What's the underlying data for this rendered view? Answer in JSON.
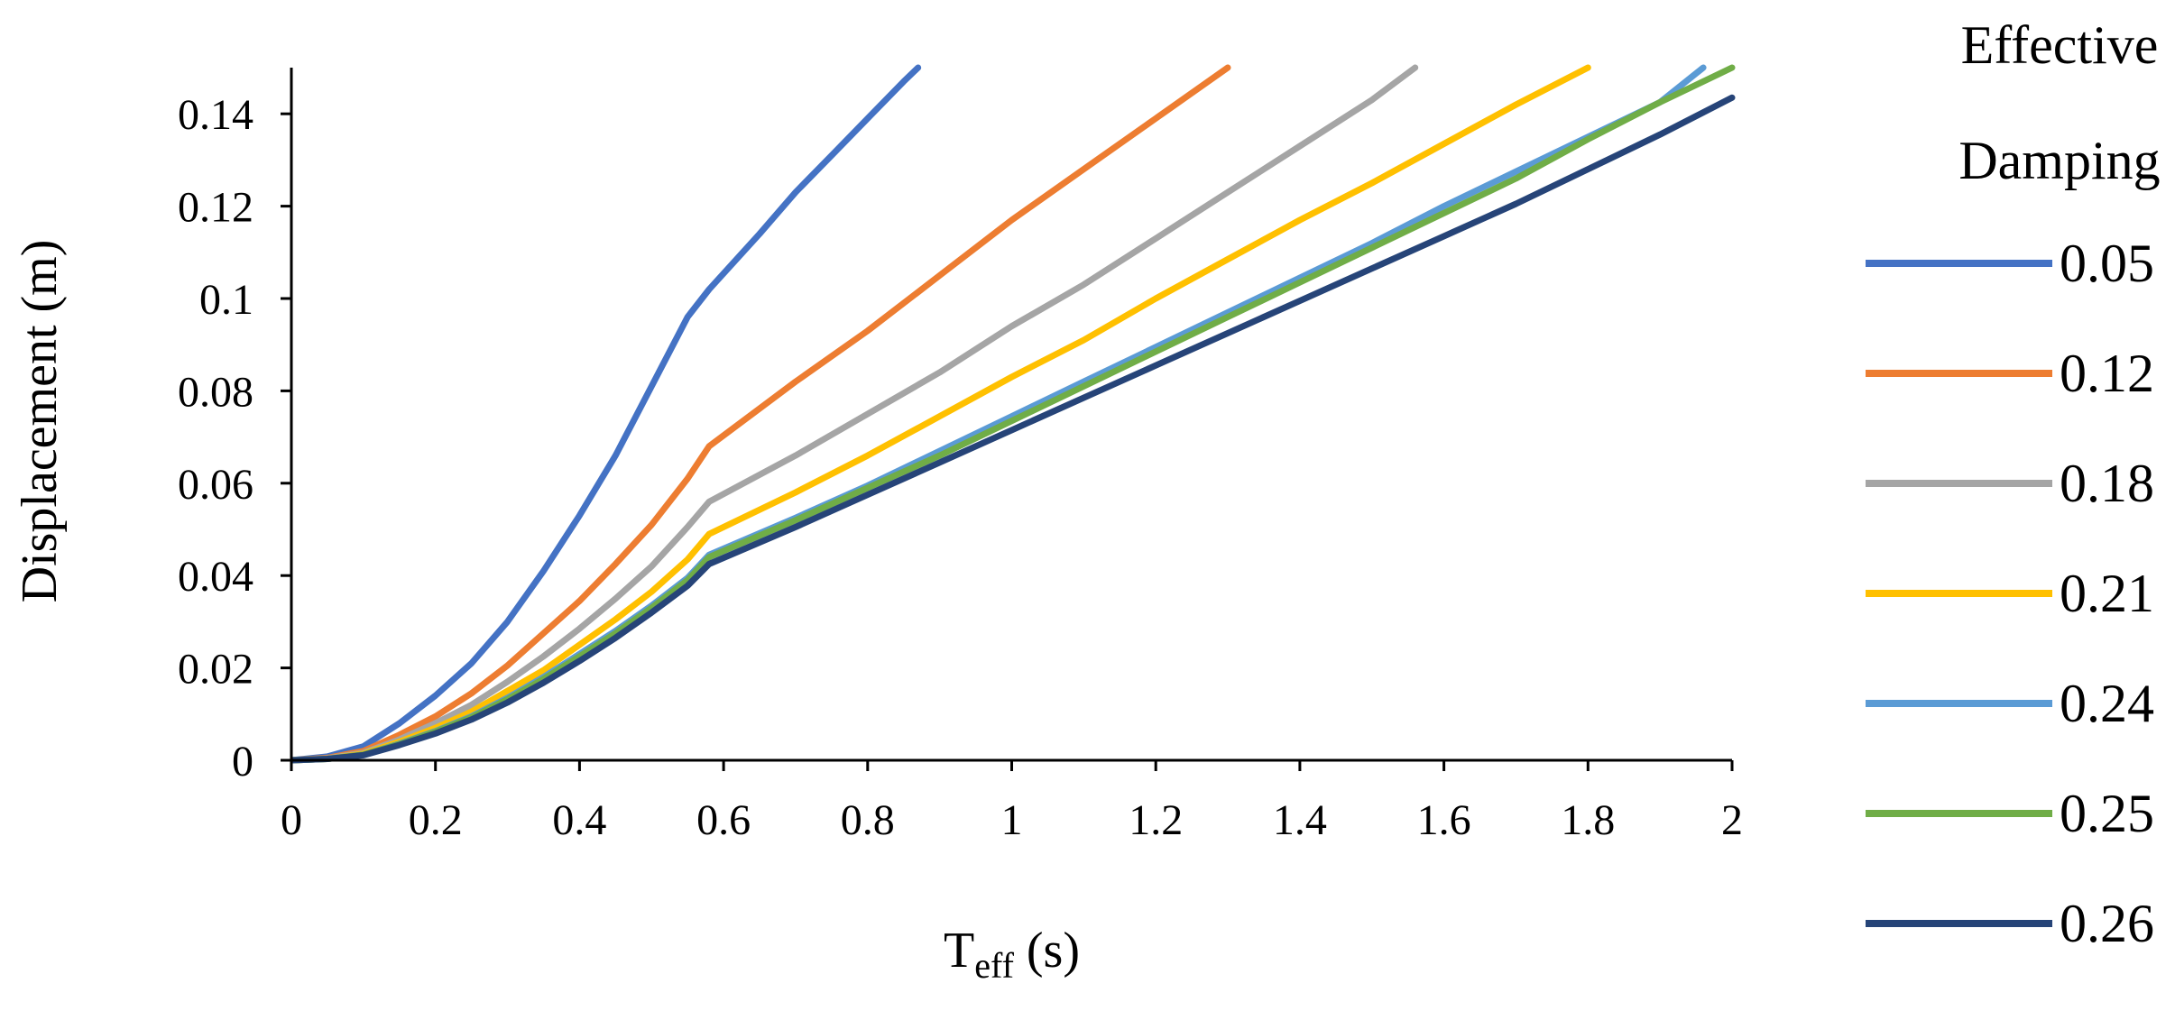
{
  "chart_data": {
    "type": "line",
    "title": "",
    "xlabel_main": "T",
    "xlabel_sub": "eff",
    "xlabel_unit": " (s)",
    "ylabel": "Displacement (m)",
    "xlim": [
      0,
      2
    ],
    "ylim": [
      0,
      0.15
    ],
    "grid": false,
    "legend_position": "right",
    "legend_title": [
      "Effective",
      "Damping"
    ],
    "x_ticks": [
      0,
      0.2,
      0.4,
      0.6,
      0.8,
      1,
      1.2,
      1.4,
      1.6,
      1.8,
      2
    ],
    "x_tick_labels": [
      "0",
      "0.2",
      "0.4",
      "0.6",
      "0.8",
      "1",
      "1.2",
      "1.4",
      "1.6",
      "1.8",
      "2"
    ],
    "y_ticks": [
      0,
      0.02,
      0.04,
      0.06,
      0.08,
      0.1,
      0.12,
      0.14
    ],
    "y_tick_labels": [
      "0",
      "0.02",
      "0.04",
      "0.06",
      "0.08",
      "0.1",
      "0.12",
      "0.14"
    ],
    "series": [
      {
        "name": "0.05",
        "color": "#4472C4",
        "x": [
          0,
          0.05,
          0.1,
          0.15,
          0.2,
          0.25,
          0.3,
          0.35,
          0.4,
          0.45,
          0.5,
          0.55,
          0.58,
          0.65,
          0.7,
          0.75,
          0.8,
          0.85,
          0.87
        ],
        "y": [
          0,
          0.0008,
          0.003,
          0.008,
          0.014,
          0.021,
          0.03,
          0.041,
          0.053,
          0.066,
          0.081,
          0.096,
          0.102,
          0.114,
          0.123,
          0.131,
          0.139,
          0.147,
          0.15
        ]
      },
      {
        "name": "0.12",
        "color": "#ED7D31",
        "x": [
          0,
          0.05,
          0.1,
          0.15,
          0.2,
          0.25,
          0.3,
          0.35,
          0.4,
          0.45,
          0.5,
          0.55,
          0.58,
          0.7,
          0.8,
          0.9,
          1.0,
          1.1,
          1.2,
          1.3
        ],
        "y": [
          0,
          0.0005,
          0.002,
          0.0055,
          0.0095,
          0.0145,
          0.0205,
          0.0275,
          0.0345,
          0.0425,
          0.051,
          0.061,
          0.068,
          0.082,
          0.093,
          0.105,
          0.117,
          0.128,
          0.139,
          0.15
        ]
      },
      {
        "name": "0.18",
        "color": "#A5A5A5",
        "x": [
          0,
          0.05,
          0.1,
          0.15,
          0.2,
          0.25,
          0.3,
          0.35,
          0.4,
          0.45,
          0.5,
          0.55,
          0.58,
          0.7,
          0.8,
          0.9,
          1.0,
          1.1,
          1.2,
          1.3,
          1.4,
          1.5,
          1.56
        ],
        "y": [
          0,
          0.0004,
          0.0016,
          0.0045,
          0.008,
          0.012,
          0.017,
          0.0225,
          0.0285,
          0.035,
          0.042,
          0.0505,
          0.056,
          0.066,
          0.075,
          0.084,
          0.094,
          0.103,
          0.113,
          0.123,
          0.133,
          0.143,
          0.15
        ]
      },
      {
        "name": "0.21",
        "color": "#FFC000",
        "x": [
          0,
          0.05,
          0.1,
          0.15,
          0.2,
          0.25,
          0.3,
          0.35,
          0.4,
          0.45,
          0.5,
          0.55,
          0.58,
          0.7,
          0.8,
          0.9,
          1.0,
          1.1,
          1.2,
          1.3,
          1.4,
          1.5,
          1.6,
          1.7,
          1.8
        ],
        "y": [
          0,
          0.0003,
          0.0014,
          0.004,
          0.007,
          0.0105,
          0.015,
          0.0195,
          0.025,
          0.0305,
          0.0365,
          0.0435,
          0.049,
          0.058,
          0.066,
          0.0745,
          0.083,
          0.091,
          0.1,
          0.1085,
          0.117,
          0.125,
          0.1335,
          0.142,
          0.15
        ]
      },
      {
        "name": "0.24",
        "color": "#5B9BD5",
        "x": [
          0,
          0.05,
          0.1,
          0.15,
          0.2,
          0.25,
          0.3,
          0.35,
          0.4,
          0.45,
          0.5,
          0.55,
          0.58,
          0.7,
          0.8,
          0.9,
          1.0,
          1.1,
          1.2,
          1.3,
          1.4,
          1.5,
          1.6,
          1.7,
          1.8,
          1.9,
          1.96
        ],
        "y": [
          0,
          0.0003,
          0.0012,
          0.0036,
          0.0063,
          0.0095,
          0.0135,
          0.018,
          0.023,
          0.028,
          0.0335,
          0.0395,
          0.0445,
          0.0525,
          0.0595,
          0.067,
          0.0745,
          0.082,
          0.0895,
          0.097,
          0.1045,
          0.112,
          0.12,
          0.1275,
          0.135,
          0.1425,
          0.15
        ]
      },
      {
        "name": "0.25",
        "color": "#70AD47",
        "x": [
          0,
          0.05,
          0.1,
          0.15,
          0.2,
          0.25,
          0.3,
          0.35,
          0.4,
          0.45,
          0.5,
          0.55,
          0.58,
          0.7,
          0.8,
          0.9,
          1.0,
          1.1,
          1.2,
          1.3,
          1.4,
          1.5,
          1.6,
          1.7,
          1.8,
          1.9,
          2.0
        ],
        "y": [
          0,
          0.0003,
          0.0012,
          0.0035,
          0.0062,
          0.0093,
          0.0132,
          0.0176,
          0.0225,
          0.0275,
          0.033,
          0.039,
          0.044,
          0.052,
          0.059,
          0.066,
          0.0735,
          0.081,
          0.0885,
          0.096,
          0.1035,
          0.111,
          0.1185,
          0.126,
          0.1345,
          0.1425,
          0.15
        ]
      },
      {
        "name": "0.26",
        "color": "#264478",
        "x": [
          0,
          0.05,
          0.1,
          0.15,
          0.2,
          0.25,
          0.3,
          0.35,
          0.4,
          0.45,
          0.5,
          0.55,
          0.58,
          0.7,
          0.8,
          0.9,
          1.0,
          1.1,
          1.2,
          1.3,
          1.4,
          1.5,
          1.6,
          1.7,
          1.8,
          1.9,
          2.0
        ],
        "y": [
          0,
          0.0003,
          0.0011,
          0.0033,
          0.0058,
          0.0088,
          0.0125,
          0.0168,
          0.0215,
          0.0265,
          0.032,
          0.0378,
          0.0425,
          0.0505,
          0.0575,
          0.0645,
          0.0715,
          0.0785,
          0.0855,
          0.0925,
          0.0995,
          0.1065,
          0.1135,
          0.1205,
          0.128,
          0.1355,
          0.1435
        ]
      }
    ]
  }
}
